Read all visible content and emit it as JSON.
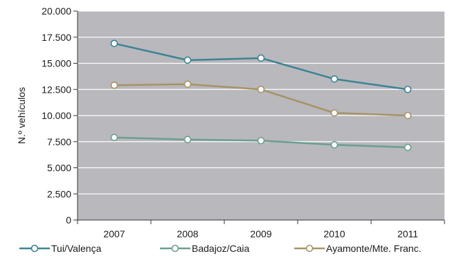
{
  "chart_data": {
    "type": "line",
    "categories": [
      "2007",
      "2008",
      "2009",
      "2010",
      "2011"
    ],
    "ylabel": "N.º vehículos",
    "xlabel": "",
    "ylim": [
      0,
      20000
    ],
    "yticks": [
      "0",
      "2.500",
      "5.000",
      "7.500",
      "10.000",
      "12.500",
      "15.000",
      "17.500",
      "20.000"
    ],
    "grid": "horizontal",
    "legend_position": "bottom",
    "series": [
      {
        "name": "Tui/Valença",
        "color": "#3d8294",
        "values": [
          16900,
          15300,
          15500,
          13500,
          12500
        ]
      },
      {
        "name": "Badajoz/Caia",
        "color": "#6b9e8f",
        "values": [
          7900,
          7700,
          7600,
          7200,
          6950
        ]
      },
      {
        "name": "Ayamonte/Mte. Franc.",
        "color": "#a89264",
        "values": [
          12900,
          13000,
          12500,
          10250,
          10000
        ]
      }
    ],
    "plot_background": "#b8b8bd",
    "grid_color": "#ffffff"
  }
}
